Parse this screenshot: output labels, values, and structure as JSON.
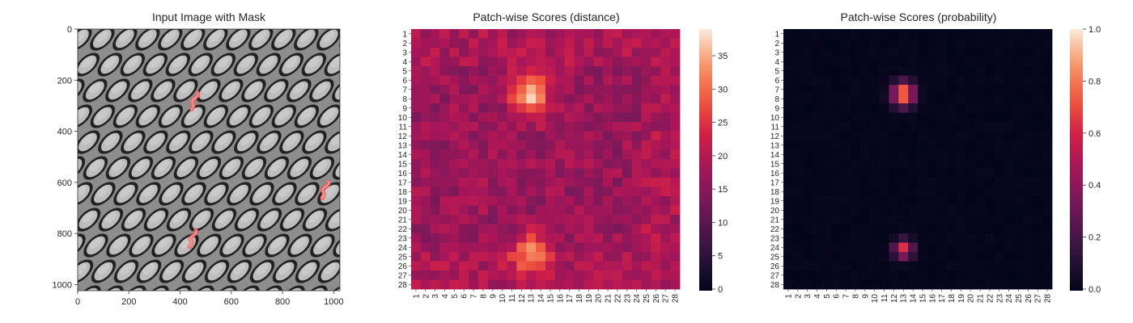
{
  "chart_data": [
    {
      "type": "image",
      "title": "Input Image with Mask",
      "xlim": [
        0,
        1024
      ],
      "ylim": [
        1024,
        0
      ],
      "xticks": [
        0,
        200,
        400,
        600,
        800,
        1000
      ],
      "yticks": [
        0,
        200,
        400,
        600,
        800,
        1000
      ],
      "texture": "grayscale woven diamond-lattice surface",
      "mask_regions": [
        {
          "x": 455,
          "y": 280
        },
        {
          "x": 965,
          "y": 628
        },
        {
          "x": 448,
          "y": 818
        }
      ],
      "colors": {
        "mask": "#ff5a5a",
        "background": "#8a8a8a",
        "pattern_dark": "#242424"
      }
    },
    {
      "type": "heatmap",
      "title": "Patch-wise Scores (distance)",
      "rows": 28,
      "cols": 28,
      "row_labels": [
        "1",
        "2",
        "3",
        "4",
        "5",
        "6",
        "7",
        "8",
        "9",
        "10",
        "11",
        "12",
        "13",
        "14",
        "15",
        "16",
        "17",
        "18",
        "19",
        "20",
        "21",
        "22",
        "23",
        "24",
        "25",
        "26",
        "27",
        "28"
      ],
      "col_labels": [
        "1",
        "2",
        "3",
        "4",
        "5",
        "6",
        "7",
        "8",
        "9",
        "10",
        "11",
        "12",
        "13",
        "14",
        "15",
        "16",
        "17",
        "18",
        "19",
        "20",
        "21",
        "22",
        "23",
        "24",
        "25",
        "26",
        "27",
        "28"
      ],
      "colorbar": {
        "min": 0,
        "max": 39,
        "ticks": [
          0,
          5,
          10,
          15,
          20,
          25,
          30,
          35
        ]
      },
      "colormap": "rocket",
      "background_value": 17,
      "hotspots": [
        {
          "row": 7.5,
          "col": 13,
          "peak": 39,
          "sigma_row": 1.6,
          "sigma_col": 1.3
        },
        {
          "row": 24.5,
          "col": 13,
          "peak": 33,
          "sigma_row": 1.5,
          "sigma_col": 1.3
        }
      ]
    },
    {
      "type": "heatmap",
      "title": "Patch-wise Scores (probability)",
      "rows": 28,
      "cols": 28,
      "row_labels": [
        "1",
        "2",
        "3",
        "4",
        "5",
        "6",
        "7",
        "8",
        "9",
        "10",
        "11",
        "12",
        "13",
        "14",
        "15",
        "16",
        "17",
        "18",
        "19",
        "20",
        "21",
        "22",
        "23",
        "24",
        "25",
        "26",
        "27",
        "28"
      ],
      "col_labels": [
        "1",
        "2",
        "3",
        "4",
        "5",
        "6",
        "7",
        "8",
        "9",
        "10",
        "11",
        "12",
        "13",
        "14",
        "15",
        "16",
        "17",
        "18",
        "19",
        "20",
        "21",
        "22",
        "23",
        "24",
        "25",
        "26",
        "27",
        "28"
      ],
      "colorbar": {
        "min": 0.0,
        "max": 1.0,
        "ticks": [
          "0.0",
          "0.2",
          "0.4",
          "0.6",
          "0.8",
          "1.0"
        ]
      },
      "colormap": "rocket",
      "background_value": 0,
      "hotspots": [
        {
          "row": 7.5,
          "col": 13,
          "peak": 0.85,
          "sigma_row": 0.9,
          "sigma_col": 0.8
        },
        {
          "row": 24.2,
          "col": 13,
          "peak": 0.65,
          "sigma_row": 0.7,
          "sigma_col": 0.7
        }
      ]
    }
  ]
}
